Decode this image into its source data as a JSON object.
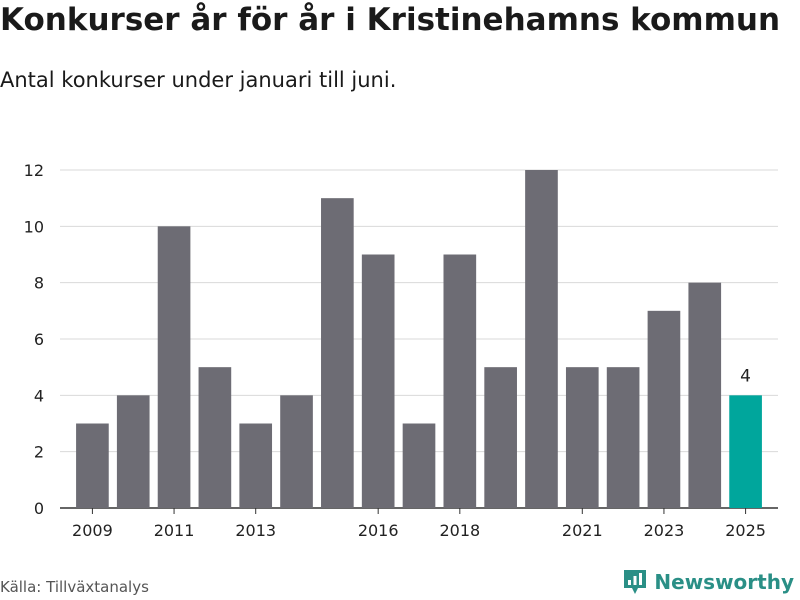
{
  "title": "Konkurser år för år i Kristinehamns kommun",
  "subtitle": "Antal konkurser under januari till juni.",
  "source": "Källa: Tillväxtanalys",
  "brand": "Newsworthy",
  "colors": {
    "bar": "#6d6c74",
    "highlight": "#00a69c",
    "grid": "#d9d9d9",
    "axis": "#333333"
  },
  "chart_data": {
    "type": "bar",
    "title": "Konkurser år för år i Kristinehamns kommun",
    "subtitle": "Antal konkurser under januari till juni.",
    "xlabel": "",
    "ylabel": "",
    "x": [
      2009,
      2010,
      2011,
      2012,
      2013,
      2014,
      2015,
      2016,
      2017,
      2018,
      2019,
      2020,
      2021,
      2022,
      2023,
      2024,
      2025
    ],
    "values": [
      3,
      4,
      10,
      5,
      3,
      4,
      11,
      9,
      3,
      9,
      5,
      12,
      5,
      5,
      7,
      8,
      4
    ],
    "highlight_index": 16,
    "data_labels": [
      {
        "index": 16,
        "text": "4"
      }
    ],
    "x_tick_labels": [
      "2009",
      "2011",
      "2013",
      "2016",
      "2018",
      "2021",
      "2023",
      "2025"
    ],
    "y_ticks": [
      0,
      2,
      4,
      6,
      8,
      10,
      12
    ],
    "ylim": [
      0,
      12
    ],
    "grid": true,
    "legend": "none"
  }
}
